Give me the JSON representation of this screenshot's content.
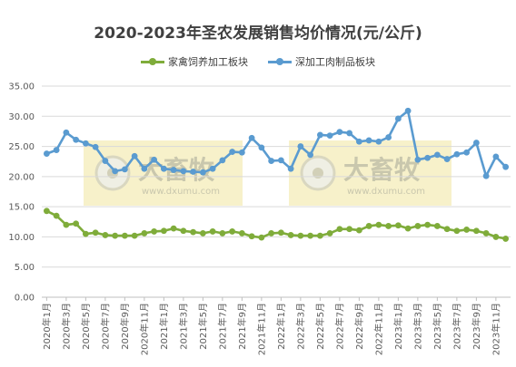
{
  "chart_data": {
    "type": "line",
    "title": "2020-2023年圣农发展销售均价情况(元/公斤)",
    "xlabel": "",
    "ylabel": "",
    "ylim": [
      0,
      35
    ],
    "yticks": [
      "0.00",
      "5.00",
      "10.00",
      "15.00",
      "20.00",
      "25.00",
      "30.00",
      "35.00"
    ],
    "grid": true,
    "legend_position": "top",
    "x": [
      "2020年1月",
      "2020年2月",
      "2020年3月",
      "2020年4月",
      "2020年5月",
      "2020年6月",
      "2020年7月",
      "2020年8月",
      "2020年9月",
      "2020年10月",
      "2020年11月",
      "2020年12月",
      "2021年1月",
      "2021年2月",
      "2021年3月",
      "2021年4月",
      "2021年5月",
      "2021年6月",
      "2021年7月",
      "2021年8月",
      "2021年9月",
      "2021年10月",
      "2021年11月",
      "2021年12月",
      "2022年1月",
      "2022年2月",
      "2022年3月",
      "2022年4月",
      "2022年5月",
      "2022年6月",
      "2022年7月",
      "2022年8月",
      "2022年9月",
      "2022年10月",
      "2022年11月",
      "2022年12月",
      "2023年1月",
      "2023年2月",
      "2023年3月",
      "2023年4月",
      "2023年5月",
      "2023年6月",
      "2023年7月",
      "2023年8月",
      "2023年9月",
      "2023年10月",
      "2023年11月",
      "2023年12月"
    ],
    "x_tick_labels": [
      "2020年1月",
      "2020年3月",
      "2020年5月",
      "2020年7月",
      "2020年9月",
      "2020年11月",
      "2021年1月",
      "2021年3月",
      "2021年5月",
      "2021年7月",
      "2021年9月",
      "2021年11月",
      "2022年1月",
      "2022年3月",
      "2022年5月",
      "2022年7月",
      "2022年9月",
      "2022年11月",
      "2023年1月",
      "2023年3月",
      "2023年5月",
      "2023年7月",
      "2023年9月",
      "2023年11月"
    ],
    "series": [
      {
        "name": "家禽饲养加工板块",
        "color": "#7fac3a",
        "values": [
          14.3,
          13.5,
          12.0,
          12.2,
          10.5,
          10.7,
          10.3,
          10.2,
          10.2,
          10.2,
          10.6,
          10.9,
          11.0,
          11.4,
          11.0,
          10.8,
          10.6,
          10.9,
          10.6,
          10.9,
          10.6,
          10.1,
          9.9,
          10.6,
          10.7,
          10.3,
          10.2,
          10.2,
          10.2,
          10.6,
          11.3,
          11.3,
          11.1,
          11.8,
          12.0,
          11.8,
          11.9,
          11.4,
          11.8,
          12.0,
          11.8,
          11.3,
          11.0,
          11.2,
          11.0,
          10.6,
          10.0,
          9.7
        ]
      },
      {
        "name": "深加工肉制品板块",
        "color": "#5a9bd0",
        "values": [
          23.8,
          24.4,
          27.3,
          26.1,
          25.5,
          24.9,
          22.6,
          20.9,
          21.2,
          23.4,
          21.3,
          22.8,
          21.3,
          21.1,
          20.9,
          20.8,
          20.7,
          21.3,
          22.7,
          24.1,
          24.0,
          26.4,
          24.8,
          22.6,
          22.7,
          21.3,
          25.0,
          23.6,
          26.9,
          26.8,
          27.4,
          27.2,
          25.8,
          26.0,
          25.8,
          26.5,
          29.6,
          30.9,
          22.8,
          23.1,
          23.6,
          22.9,
          23.7,
          24.0,
          25.6,
          20.1,
          23.3,
          21.6
        ]
      }
    ]
  },
  "watermark": {
    "text": "大畜牧",
    "sub": "www.dxumu.com"
  }
}
